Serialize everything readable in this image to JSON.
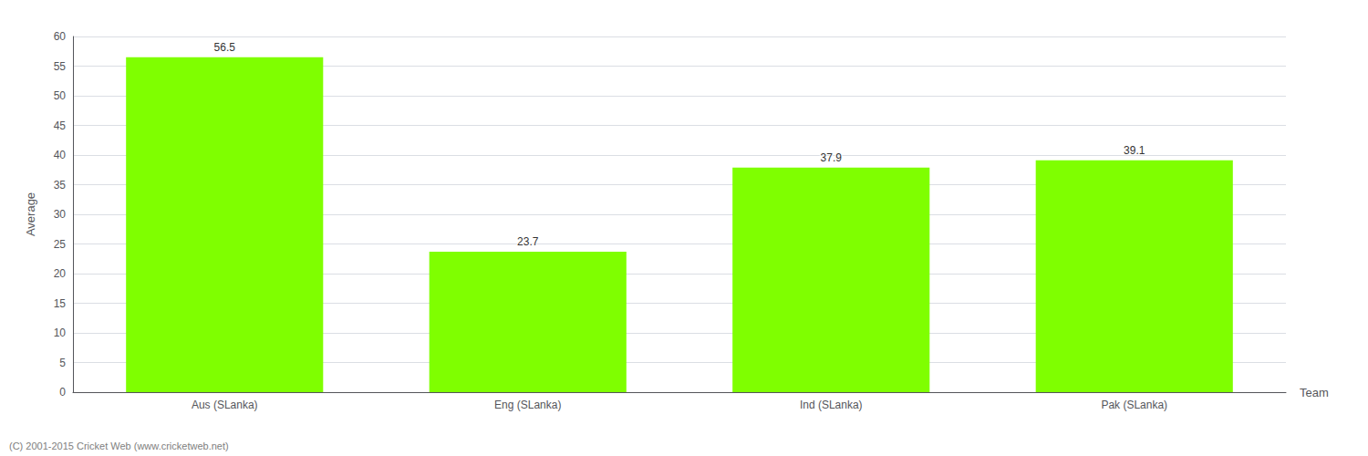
{
  "chart_data": {
    "type": "bar",
    "categories": [
      "Aus (SLanka)",
      "Eng (SLanka)",
      "Ind (SLanka)",
      "Pak (SLanka)"
    ],
    "values": [
      56.5,
      23.7,
      37.9,
      39.1
    ],
    "color": "#7FFF00",
    "xlabel": "Team",
    "ylabel": "Average",
    "ylim": [
      0,
      60
    ],
    "yticks": [
      0,
      5,
      10,
      15,
      20,
      25,
      30,
      35,
      40,
      45,
      50,
      55,
      60
    ],
    "grid": true,
    "data_labels": true,
    "annotations": [
      "(C) 2001-2015 Cricket Web (www.cricketweb.net)"
    ]
  }
}
